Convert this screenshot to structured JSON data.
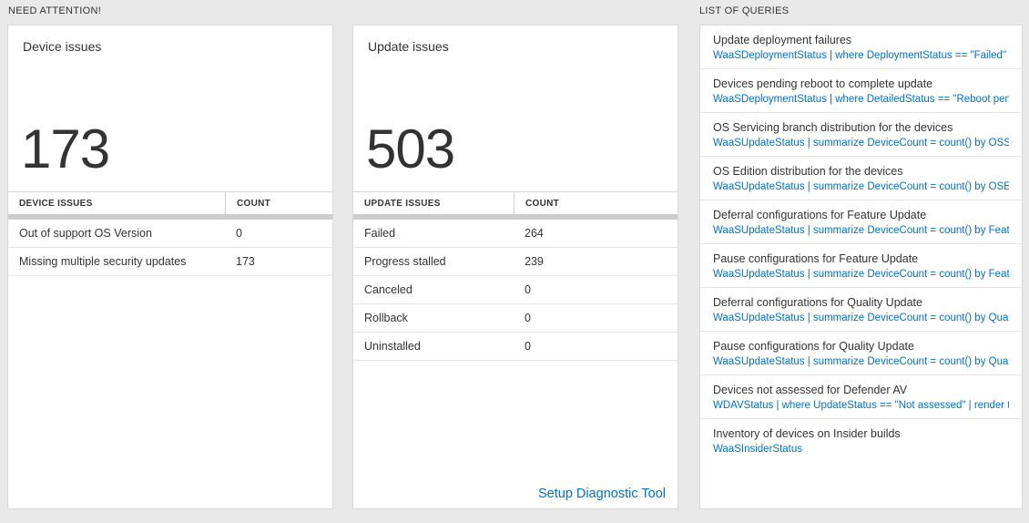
{
  "colors": {
    "accent_blue": "#0072c6",
    "page_bg": "#e9e9e9"
  },
  "need_attention": {
    "label": "NEED ATTENTION!"
  },
  "device_card": {
    "title": "Device issues",
    "big_number": "173",
    "table": {
      "headers": [
        "DEVICE ISSUES",
        "COUNT"
      ],
      "rows": [
        {
          "label": "Out of support OS Version",
          "count": "0"
        },
        {
          "label": "Missing multiple security updates",
          "count": "173"
        }
      ]
    }
  },
  "update_card": {
    "title": "Update issues",
    "big_number": "503",
    "table": {
      "headers": [
        "UPDATE ISSUES",
        "COUNT"
      ],
      "rows": [
        {
          "label": "Failed",
          "count": "264"
        },
        {
          "label": "Progress stalled",
          "count": "239"
        },
        {
          "label": "Canceled",
          "count": "0"
        },
        {
          "label": "Rollback",
          "count": "0"
        },
        {
          "label": "Uninstalled",
          "count": "0"
        }
      ]
    },
    "footer_link": "Setup Diagnostic Tool"
  },
  "queries_panel": {
    "label": "LIST OF QUERIES",
    "items": [
      {
        "title": "Update deployment failures",
        "query": "WaaSDeploymentStatus | where DeploymentStatus == \"Failed\" |..."
      },
      {
        "title": "Devices pending reboot to complete update",
        "query": "WaaSDeploymentStatus | where DetailedStatus == \"Reboot pend..."
      },
      {
        "title": "OS Servicing branch distribution for the devices",
        "query": "WaaSUpdateStatus | summarize DeviceCount = count() by OSSer..."
      },
      {
        "title": "OS Edition distribution for the devices",
        "query": "WaaSUpdateStatus | summarize DeviceCount = count() by OSEdit..."
      },
      {
        "title": "Deferral configurations for Feature Update",
        "query": "WaaSUpdateStatus | summarize DeviceCount = count() by Featur..."
      },
      {
        "title": "Pause configurations for Feature Update",
        "query": "WaaSUpdateStatus | summarize DeviceCount = count() by Featur..."
      },
      {
        "title": "Deferral configurations for Quality Update",
        "query": "WaaSUpdateStatus | summarize DeviceCount = count() by Qualit..."
      },
      {
        "title": "Pause configurations for Quality Update",
        "query": "WaaSUpdateStatus | summarize DeviceCount = count() by Qualit..."
      },
      {
        "title": "Devices not assessed for Defender AV",
        "query": "WDAVStatus | where UpdateStatus == \"Not assessed\" | render ta..."
      },
      {
        "title": "Inventory of devices on Insider builds",
        "query": "WaaSInsiderStatus"
      }
    ]
  }
}
